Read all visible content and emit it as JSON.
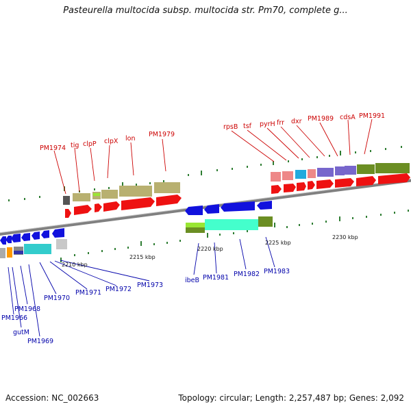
{
  "title": "Pasteurella multocida subsp. multocida str. Pm70, complete g...",
  "accession": "Accession: NC_002663",
  "topology": "Topology: circular; Length: 2,257,487 bp; Genes: 2,092",
  "scale_labels": [
    "2210 kbp",
    "2215 kbp",
    "2220 kbp",
    "2225 kbp",
    "2230 kbp"
  ],
  "top_genes": [
    "PM1974",
    "tig",
    "clpP",
    "clpX",
    "lon",
    "PM1979",
    "rpsB",
    "tsf",
    "pyrH",
    "frr",
    "dxr",
    "PM1989",
    "cdsA",
    "PM1991"
  ],
  "bottom_genes": [
    "PM1966",
    "gutM",
    "PM1968",
    "PM1969",
    "PM1970",
    "PM1971",
    "PM1972",
    "PM1973",
    "ibeB",
    "PM1981",
    "PM1982",
    "PM1983"
  ],
  "colors": {
    "forward_label": "#cc0000",
    "reverse_label": "#0000aa",
    "forward_arrow": "#ee1111",
    "reverse_arrow": "#1111dd",
    "backbone": "#888888",
    "tick": "#2e7d32"
  }
}
